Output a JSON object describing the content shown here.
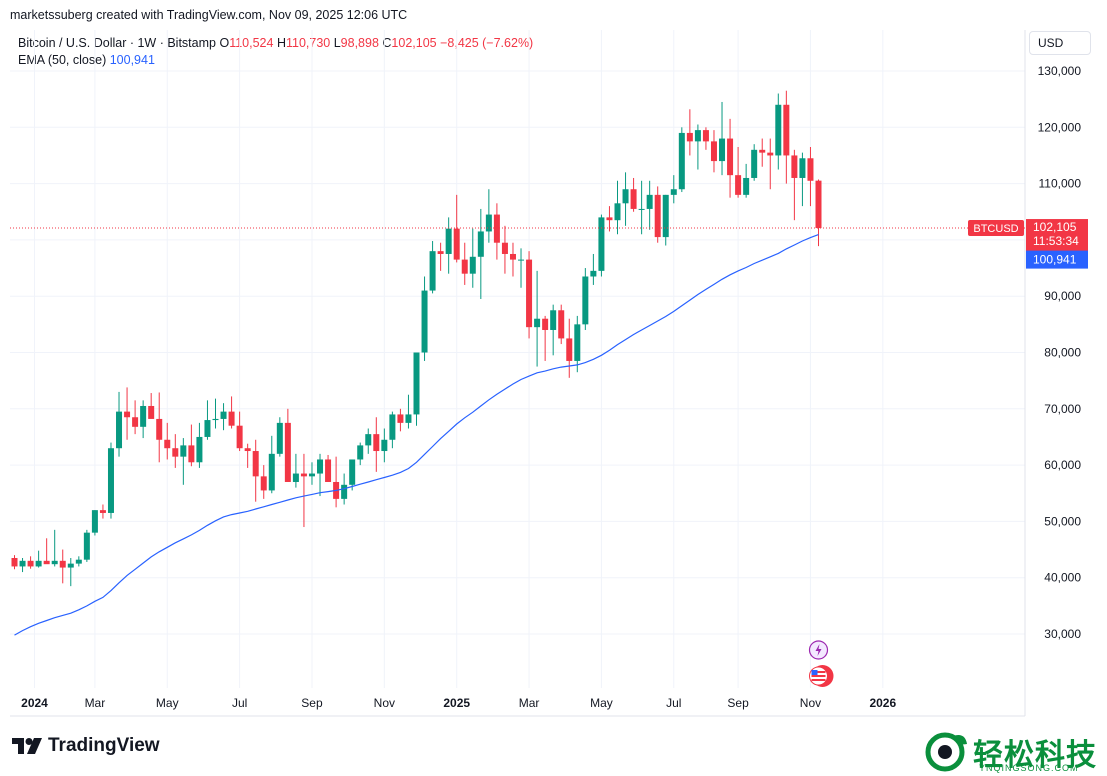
{
  "header": {
    "credit": "marketssuberg created with TradingView.com, Nov 09, 2025 12:06 UTC"
  },
  "legend": {
    "symbol": "Bitcoin / U.S. Dollar · 1W · Bitstamp",
    "o_label": "O",
    "o_value": "110,524",
    "h_label": "H",
    "h_value": "110,730",
    "l_label": "L",
    "l_value": "98,898",
    "c_label": "C",
    "c_value": "102,105",
    "change": "−8,425 (−7.62%)",
    "ema_label": "EMA (50, close)",
    "ema_value": "100,941"
  },
  "currency_button": "USD",
  "price_labels": {
    "symbol_tag": "BTCUSD",
    "last_price": "102,105",
    "countdown": "11:53:34",
    "ema_price": "100,941"
  },
  "colors": {
    "up": "#089981",
    "down": "#f23645",
    "ema": "#2962ff",
    "grid": "#f0f3fa",
    "text": "#131722"
  },
  "footer": {
    "brand": "TradingView"
  },
  "watermark": {
    "text": "轻松科技",
    "sub": "YNQINGSONG.COM"
  },
  "chart_data": {
    "type": "candlestick",
    "title": "Bitcoin / U.S. Dollar · 1W · Bitstamp",
    "y_axis": {
      "ticks": [
        30000,
        40000,
        50000,
        60000,
        70000,
        80000,
        90000,
        100000,
        110000,
        120000,
        130000
      ],
      "tick_labels": [
        "30,000",
        "40,000",
        "50,000",
        "60,000",
        "70,000",
        "80,000",
        "90,000",
        "100,000",
        "110,000",
        "120,000",
        "130,000"
      ],
      "range": [
        22000,
        135000
      ]
    },
    "x_axis": {
      "labels": [
        {
          "text": "2024",
          "bold": true,
          "week": 0
        },
        {
          "text": "Mar",
          "bold": false,
          "week": 10
        },
        {
          "text": "May",
          "bold": false,
          "week": 19
        },
        {
          "text": "Jul",
          "bold": false,
          "week": 28
        },
        {
          "text": "Sep",
          "bold": false,
          "week": 37
        },
        {
          "text": "Nov",
          "bold": false,
          "week": 46
        },
        {
          "text": "2025",
          "bold": true,
          "week": 55
        },
        {
          "text": "Mar",
          "bold": false,
          "week": 64
        },
        {
          "text": "May",
          "bold": false,
          "week": 73
        },
        {
          "text": "Jul",
          "bold": false,
          "week": 82
        },
        {
          "text": "Sep",
          "bold": false,
          "week": 90
        },
        {
          "text": "Nov",
          "bold": false,
          "week": 99
        },
        {
          "text": "2026",
          "bold": true,
          "week": 108
        }
      ]
    },
    "series": [
      {
        "name": "BTCUSD",
        "ohlc": [
          [
            43500,
            44000,
            41500,
            42000
          ],
          [
            42000,
            43500,
            41000,
            43000
          ],
          [
            43000,
            43800,
            41600,
            42000
          ],
          [
            42000,
            44800,
            41800,
            43000
          ],
          [
            43000,
            47000,
            42500,
            42400
          ],
          [
            42400,
            48500,
            42000,
            43000
          ],
          [
            43000,
            45000,
            39000,
            41800
          ],
          [
            41800,
            43500,
            38500,
            42500
          ],
          [
            42500,
            43800,
            42000,
            43200
          ],
          [
            43200,
            48500,
            42800,
            48000
          ],
          [
            48000,
            52000,
            47500,
            52000
          ],
          [
            52000,
            53000,
            50500,
            51500
          ],
          [
            51500,
            64000,
            50500,
            63000
          ],
          [
            63000,
            73000,
            61500,
            69500
          ],
          [
            69500,
            73800,
            64500,
            68500
          ],
          [
            68500,
            71500,
            65500,
            66800
          ],
          [
            66800,
            71500,
            64800,
            70500
          ],
          [
            70500,
            72800,
            68500,
            68200
          ],
          [
            68200,
            72900,
            60500,
            64500
          ],
          [
            64500,
            67500,
            61000,
            63000
          ],
          [
            63000,
            65500,
            59500,
            61500
          ],
          [
            61500,
            64800,
            56500,
            63500
          ],
          [
            63500,
            67200,
            59800,
            60500
          ],
          [
            60500,
            67500,
            59500,
            65000
          ],
          [
            65000,
            71500,
            64500,
            68000
          ],
          [
            68000,
            71800,
            66500,
            68200
          ],
          [
            68200,
            71000,
            66200,
            69500
          ],
          [
            69500,
            72200,
            66500,
            67000
          ],
          [
            67000,
            69500,
            62500,
            63000
          ],
          [
            63000,
            63800,
            59500,
            62500
          ],
          [
            62500,
            64500,
            53500,
            58000
          ],
          [
            58000,
            60000,
            54000,
            55500
          ],
          [
            55500,
            65200,
            55000,
            62000
          ],
          [
            62000,
            68500,
            61500,
            67500
          ],
          [
            67500,
            70000,
            57500,
            57000
          ],
          [
            57000,
            62000,
            56000,
            58500
          ],
          [
            58500,
            62000,
            49000,
            58000
          ],
          [
            58000,
            60500,
            56500,
            58500
          ],
          [
            58500,
            62000,
            54500,
            61000
          ],
          [
            61000,
            61800,
            57000,
            57000
          ],
          [
            57000,
            61500,
            52500,
            54000
          ],
          [
            54000,
            58500,
            53000,
            56500
          ],
          [
            56500,
            61000,
            55500,
            61000
          ],
          [
            61000,
            64000,
            60000,
            63500
          ],
          [
            63500,
            66500,
            62000,
            65500
          ],
          [
            65500,
            68500,
            58800,
            62500
          ],
          [
            62500,
            66500,
            60500,
            64500
          ],
          [
            64500,
            69500,
            63000,
            69000
          ],
          [
            69000,
            70000,
            66000,
            67500
          ],
          [
            67500,
            72500,
            66500,
            69000
          ],
          [
            69000,
            80000,
            67000,
            80000
          ],
          [
            80000,
            93500,
            78500,
            91000
          ],
          [
            91000,
            99800,
            90500,
            98000
          ],
          [
            98000,
            99500,
            94500,
            97500
          ],
          [
            97500,
            104000,
            94000,
            102000
          ],
          [
            102000,
            108000,
            96000,
            96500
          ],
          [
            96500,
            99500,
            92000,
            94000
          ],
          [
            94000,
            102000,
            91500,
            97000
          ],
          [
            97000,
            105500,
            89500,
            101500
          ],
          [
            101500,
            109000,
            99500,
            104500
          ],
          [
            104500,
            106500,
            96500,
            99500
          ],
          [
            99500,
            102500,
            94000,
            97500
          ],
          [
            97500,
            99500,
            93500,
            96500
          ],
          [
            96500,
            98500,
            91500,
            96500
          ],
          [
            96500,
            98000,
            82500,
            84500
          ],
          [
            84500,
            94500,
            77500,
            86000
          ],
          [
            86000,
            86500,
            78500,
            84000
          ],
          [
            84000,
            88500,
            79500,
            87500
          ],
          [
            87500,
            88500,
            81500,
            82500
          ],
          [
            82500,
            86000,
            75500,
            78500
          ],
          [
            78500,
            86500,
            76500,
            85000
          ],
          [
            85000,
            95000,
            84000,
            93500
          ],
          [
            93500,
            97500,
            92000,
            94500
          ],
          [
            94500,
            104500,
            93500,
            104000
          ],
          [
            104000,
            106000,
            101500,
            103500
          ],
          [
            103500,
            110500,
            101000,
            106500
          ],
          [
            106500,
            112000,
            102500,
            109000
          ],
          [
            109000,
            111000,
            105000,
            105500
          ],
          [
            105500,
            110500,
            101000,
            105500
          ],
          [
            105500,
            110500,
            101800,
            108000
          ],
          [
            108000,
            109500,
            99500,
            100500
          ],
          [
            100500,
            108000,
            99000,
            108000
          ],
          [
            108000,
            111500,
            106500,
            109000
          ],
          [
            109000,
            120000,
            108500,
            119000
          ],
          [
            119000,
            123200,
            115000,
            117500
          ],
          [
            117500,
            120500,
            112500,
            119500
          ],
          [
            119500,
            120000,
            116000,
            117500
          ],
          [
            117500,
            119500,
            112000,
            114000
          ],
          [
            114000,
            124500,
            111500,
            118000
          ],
          [
            118000,
            121500,
            107500,
            111500
          ],
          [
            111500,
            116500,
            107500,
            108000
          ],
          [
            108000,
            113500,
            107500,
            111000
          ],
          [
            111000,
            117000,
            110500,
            116000
          ],
          [
            116000,
            118000,
            113000,
            115500
          ],
          [
            115500,
            118000,
            109000,
            115000
          ],
          [
            115000,
            126000,
            112500,
            124000
          ],
          [
            124000,
            126500,
            110000,
            115000
          ],
          [
            115000,
            116000,
            103500,
            111000
          ],
          [
            111000,
            115500,
            106000,
            114500
          ],
          [
            114500,
            116500,
            106000,
            110500
          ],
          [
            110524,
            110730,
            98898,
            102105
          ]
        ]
      },
      {
        "name": "EMA (50, close)",
        "values": [
          29800,
          30600,
          31300,
          31900,
          32400,
          32900,
          33300,
          33700,
          34300,
          35000,
          35800,
          36500,
          37700,
          39100,
          40400,
          41500,
          42600,
          43700,
          44600,
          45400,
          46200,
          46900,
          47600,
          48400,
          49300,
          50100,
          50800,
          51200,
          51500,
          51800,
          52200,
          52600,
          53000,
          53400,
          53800,
          54200,
          54500,
          54800,
          55100,
          55300,
          55500,
          55800,
          56200,
          56600,
          57000,
          57400,
          57800,
          58200,
          58700,
          59400,
          60500,
          61900,
          63300,
          64700,
          66000,
          67300,
          68400,
          69400,
          70500,
          71600,
          72600,
          73500,
          74400,
          75200,
          75800,
          76400,
          76700,
          77100,
          77400,
          77600,
          77800,
          78200,
          78800,
          79500,
          80400,
          81400,
          82300,
          83200,
          84000,
          84800,
          85600,
          86400,
          87300,
          88300,
          89300,
          90300,
          91200,
          92100,
          93000,
          93800,
          94500,
          95100,
          95800,
          96400,
          97000,
          97600,
          98400,
          99100,
          99800,
          100400,
          100941
        ]
      }
    ],
    "last_close": 102105,
    "ema_last": 100941
  }
}
